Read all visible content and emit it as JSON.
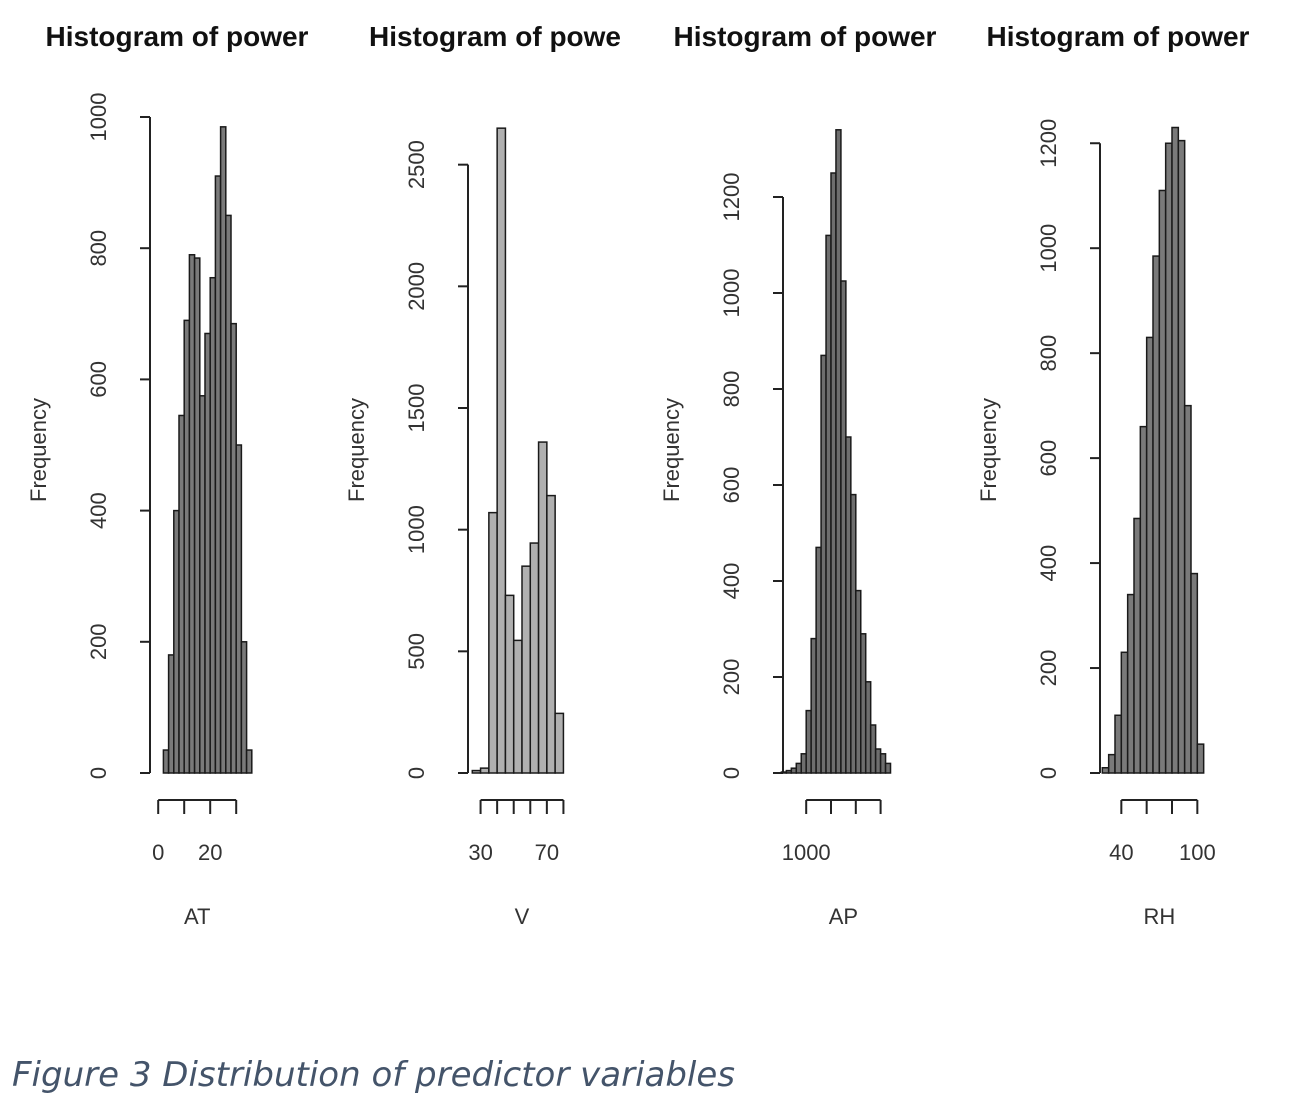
{
  "chart_data": [
    {
      "type": "histogram",
      "title": "Histogram of power",
      "xlabel": "AT",
      "ylabel": "Frequency",
      "color": "#7a7a7a",
      "bins": [
        2,
        4,
        6,
        8,
        10,
        12,
        14,
        16,
        18,
        20,
        22,
        24,
        26,
        28,
        30,
        32,
        34,
        36
      ],
      "values": [
        35,
        180,
        400,
        545,
        690,
        790,
        785,
        575,
        670,
        755,
        910,
        985,
        850,
        685,
        500,
        200,
        35
      ],
      "xlim": [
        -7,
        43
      ],
      "ylim": [
        0,
        1000
      ],
      "xticks": [
        0,
        {
          "value": 10,
          "label": null
        },
        20,
        {
          "value": 30,
          "label": null
        }
      ],
      "yticks": [
        0,
        200,
        400,
        600,
        800,
        1000
      ]
    },
    {
      "type": "histogram",
      "title": "Histogram of powe",
      "xlabel": "V",
      "ylabel": "Frequency",
      "color": "#b0b0b0",
      "bins": [
        25,
        30,
        35,
        40,
        45,
        50,
        55,
        60,
        65,
        70,
        75,
        80
      ],
      "values": [
        10,
        20,
        1070,
        2650,
        730,
        545,
        850,
        945,
        1360,
        1140,
        245
      ],
      "xlim": [
        20,
        90
      ],
      "ylim": [
        0,
        2700
      ],
      "xticks": [
        30,
        {
          "value": 40,
          "label": null
        },
        {
          "value": 50,
          "label": null
        },
        {
          "value": 60,
          "label": null
        },
        70,
        {
          "value": 80,
          "label": null
        }
      ],
      "yticks": [
        0,
        500,
        1000,
        1500,
        2000,
        2500
      ]
    },
    {
      "type": "histogram",
      "title": "Histogram of power",
      "xlabel": "AP",
      "ylabel": "Frequency",
      "color": "#6e6e6e",
      "bins": [
        990,
        992,
        994,
        996,
        998,
        1000,
        1002,
        1004,
        1006,
        1008,
        1010,
        1012,
        1014,
        1016,
        1018,
        1020,
        1022,
        1024,
        1026,
        1028,
        1030,
        1032,
        1034
      ],
      "values": [
        2,
        5,
        10,
        20,
        40,
        130,
        280,
        470,
        870,
        1120,
        1250,
        1340,
        1025,
        700,
        580,
        380,
        290,
        190,
        100,
        50,
        40,
        20
      ],
      "xlim": [
        985,
        1035
      ],
      "ylim": [
        0,
        1350
      ],
      "xticks": [
        1000,
        {
          "value": 1010,
          "label": null
        },
        {
          "value": 1020,
          "label": null
        },
        {
          "value": 1030,
          "label": null
        }
      ],
      "yticks": [
        0,
        200,
        400,
        600,
        800,
        1000,
        1200
      ]
    },
    {
      "type": "histogram",
      "title": "Histogram of power",
      "xlabel": "RH",
      "ylabel": "Frequency",
      "color": "#7a7a7a",
      "bins": [
        25,
        30,
        35,
        40,
        45,
        50,
        55,
        60,
        65,
        70,
        75,
        80,
        85,
        90,
        95,
        100,
        105
      ],
      "values": [
        10,
        35,
        110,
        230,
        340,
        485,
        660,
        830,
        985,
        1110,
        1200,
        1230,
        1205,
        700,
        380,
        55
      ],
      "xlim": [
        20,
        110
      ],
      "ylim": [
        0,
        1250
      ],
      "xticks": [
        40,
        {
          "value": 60,
          "label": null
        },
        {
          "value": 80,
          "label": null
        },
        100
      ],
      "yticks": [
        0,
        200,
        400,
        600,
        800,
        1000,
        1200
      ]
    }
  ],
  "caption": "Figure 3 Distribution of predictor variables"
}
